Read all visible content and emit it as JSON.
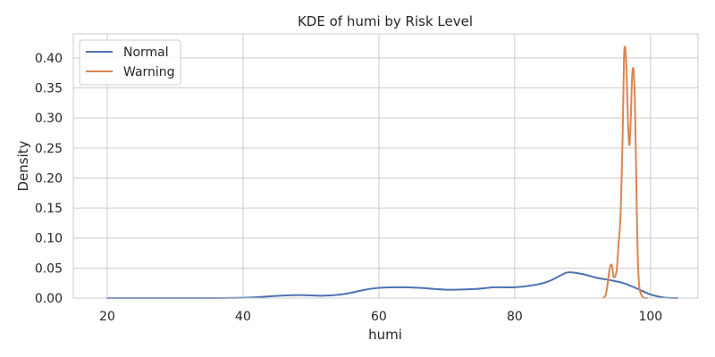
{
  "chart_data": {
    "type": "line",
    "title": "KDE of humi by Risk Level",
    "xlabel": "humi",
    "ylabel": "Density",
    "xlim": [
      15,
      107
    ],
    "ylim": [
      0,
      0.44
    ],
    "x_ticks": [
      20,
      40,
      60,
      80,
      100
    ],
    "x_tick_labels": [
      "20",
      "40",
      "60",
      "80",
      "100"
    ],
    "y_ticks": [
      0,
      0.05,
      0.1,
      0.15,
      0.2,
      0.25,
      0.3,
      0.35,
      0.4
    ],
    "y_tick_labels": [
      "0.00",
      "0.05",
      "0.10",
      "0.15",
      "0.20",
      "0.25",
      "0.30",
      "0.35",
      "0.40"
    ],
    "grid": true,
    "legend_position": "top-left",
    "series": [
      {
        "name": "Normal",
        "color": "#4c72b0",
        "x": [
          20,
          30,
          40,
          44,
          48,
          52,
          55,
          58,
          60,
          63,
          66,
          70,
          74,
          77,
          80,
          83,
          85,
          87,
          88,
          90,
          92,
          94,
          96,
          98,
          100,
          102,
          104
        ],
        "y": [
          0.0,
          0.0,
          0.0005,
          0.003,
          0.005,
          0.004,
          0.007,
          0.014,
          0.017,
          0.018,
          0.017,
          0.014,
          0.015,
          0.018,
          0.018,
          0.022,
          0.028,
          0.039,
          0.043,
          0.04,
          0.034,
          0.03,
          0.025,
          0.016,
          0.006,
          0.001,
          0.0
        ]
      },
      {
        "name": "Warning",
        "color": "#dd8452",
        "x": [
          93.0,
          93.4,
          93.7,
          94.0,
          94.3,
          94.6,
          95.0,
          95.3,
          95.6,
          95.9,
          96.1,
          96.3,
          96.5,
          96.7,
          96.9,
          97.1,
          97.3,
          97.5,
          97.7,
          97.9,
          98.1,
          98.3,
          98.5,
          98.8,
          99.1,
          99.5
        ],
        "y": [
          0.0,
          0.005,
          0.025,
          0.05,
          0.055,
          0.035,
          0.045,
          0.09,
          0.14,
          0.27,
          0.4,
          0.415,
          0.37,
          0.29,
          0.255,
          0.3,
          0.37,
          0.38,
          0.33,
          0.2,
          0.08,
          0.025,
          0.01,
          0.003,
          0.0,
          0.0
        ]
      }
    ]
  }
}
